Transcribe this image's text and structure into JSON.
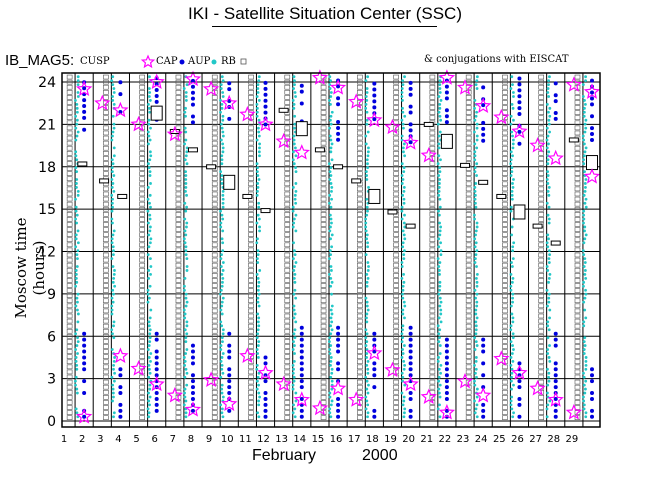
{
  "title": "IKI - Satellite Situation Center (SSC)",
  "legend": {
    "series_label": "IB_MAG5:",
    "cusp": "CUSP",
    "cap": "CAP",
    "aup": "AUP",
    "rb": "RB",
    "note": "& conjugations with EISCAT"
  },
  "colors": {
    "cusp": "#ff00ff",
    "cap": "#0000dd",
    "aup": "#22c8c8",
    "rb": "#555555",
    "grid": "#000000"
  },
  "chart_data": {
    "type": "scatter",
    "title": "IKI - Satellite Situation Center (SSC)",
    "ylabel": "Moscow time (hours)",
    "xlabel_month": "February",
    "xlabel_year": "2000",
    "x_ticks": [
      1,
      2,
      3,
      4,
      5,
      6,
      7,
      8,
      9,
      10,
      11,
      12,
      13,
      14,
      15,
      16,
      17,
      18,
      19,
      20,
      21,
      22,
      23,
      24,
      25,
      26,
      27,
      28,
      29
    ],
    "y_ticks": [
      0,
      3,
      6,
      9,
      12,
      15,
      18,
      21,
      24
    ],
    "xlim": [
      1,
      30
    ],
    "ylim": [
      0,
      24.5
    ],
    "series": [
      {
        "name": "CUSP",
        "marker": "star",
        "points": [
          [
            2,
            0.3
          ],
          [
            2,
            23.5
          ],
          [
            3,
            22.5
          ],
          [
            4,
            4.6
          ],
          [
            4,
            22
          ],
          [
            5,
            3.7
          ],
          [
            5,
            21
          ],
          [
            6,
            2.6
          ],
          [
            6,
            24
          ],
          [
            7,
            1.8
          ],
          [
            7,
            20.3
          ],
          [
            8,
            0.8
          ],
          [
            8,
            24.2
          ],
          [
            9,
            2.9
          ],
          [
            9,
            23.5
          ],
          [
            10,
            1.2
          ],
          [
            10,
            22.5
          ],
          [
            11,
            4.6
          ],
          [
            11,
            21.7
          ],
          [
            12,
            3.4
          ],
          [
            12,
            21
          ],
          [
            13,
            2.6
          ],
          [
            13,
            19.8
          ],
          [
            14,
            1.5
          ],
          [
            14,
            19
          ],
          [
            15,
            0.9
          ],
          [
            15,
            24.3
          ],
          [
            16,
            2.3
          ],
          [
            16,
            23.6
          ],
          [
            17,
            1.5
          ],
          [
            17,
            22.6
          ],
          [
            18,
            4.8
          ],
          [
            18,
            21.3
          ],
          [
            19,
            3.6
          ],
          [
            19,
            20.8
          ],
          [
            20,
            2.6
          ],
          [
            20,
            19.7
          ],
          [
            21,
            1.7
          ],
          [
            21,
            18.8
          ],
          [
            22,
            0.6
          ],
          [
            22,
            24.3
          ],
          [
            23,
            2.8
          ],
          [
            23,
            23.6
          ],
          [
            24,
            1.8
          ],
          [
            24,
            22.3
          ],
          [
            25,
            4.4
          ],
          [
            25,
            21.5
          ],
          [
            26,
            3.4
          ],
          [
            26,
            20.5
          ],
          [
            27,
            2.3
          ],
          [
            27,
            19.5
          ],
          [
            28,
            1.5
          ],
          [
            28,
            18.6
          ],
          [
            29,
            0.6
          ],
          [
            29,
            23.8
          ],
          [
            30,
            17.3
          ],
          [
            30,
            23.3
          ]
        ]
      },
      {
        "name": "CAP",
        "marker": "dot",
        "days": [
          2,
          4,
          6,
          8,
          10,
          12,
          14,
          16,
          18,
          20,
          22,
          24,
          26,
          28,
          30
        ]
      },
      {
        "name": "AUP",
        "marker": "dot",
        "days": [
          1.6,
          3.6,
          5.6,
          7.6,
          9.6,
          11.6,
          13.6,
          15.6,
          17.6,
          19.6,
          21.6,
          23.6,
          25.6,
          27.6,
          29.6
        ]
      },
      {
        "name": "RB",
        "marker": "square",
        "days": [
          1.2,
          3.2,
          5.2,
          7.2,
          9.2,
          11.2,
          13.2,
          15.2,
          17.2,
          19.2,
          21.2,
          23.2,
          25.2,
          27.2,
          29.2
        ]
      }
    ],
    "eiscat_conjugations": [
      [
        1.9,
        18.2
      ],
      [
        3.1,
        17
      ],
      [
        4.1,
        15.9
      ],
      [
        6,
        21.8
      ],
      [
        7,
        20.5
      ],
      [
        8,
        19.2
      ],
      [
        9,
        18
      ],
      [
        10,
        16.9
      ],
      [
        11,
        15.9
      ],
      [
        12,
        14.9
      ],
      [
        13,
        22
      ],
      [
        14,
        20.7
      ],
      [
        15,
        19.2
      ],
      [
        16,
        18
      ],
      [
        17,
        17
      ],
      [
        18,
        15.9
      ],
      [
        19,
        14.8
      ],
      [
        20,
        13.8
      ],
      [
        21,
        21
      ],
      [
        22,
        19.8
      ],
      [
        23,
        18.1
      ],
      [
        24,
        16.9
      ],
      [
        25,
        15.9
      ],
      [
        26,
        14.8
      ],
      [
        27,
        13.8
      ],
      [
        28,
        12.6
      ],
      [
        29,
        19.9
      ],
      [
        30,
        18.3
      ]
    ]
  }
}
